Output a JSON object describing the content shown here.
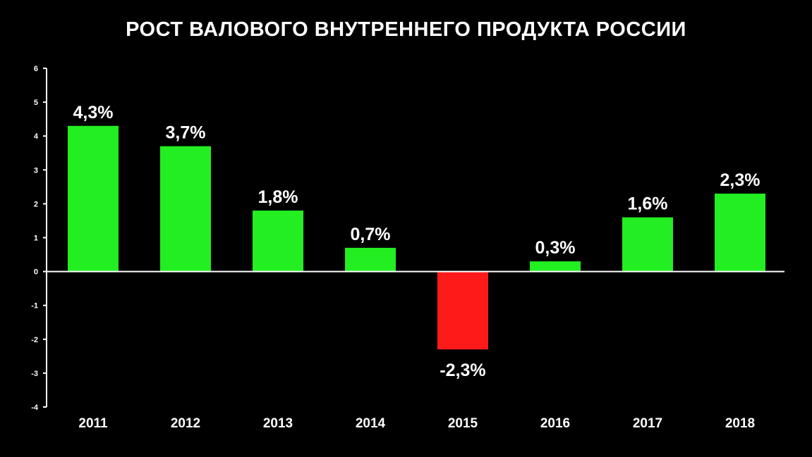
{
  "chart_data": {
    "type": "bar",
    "title": "РОСТ ВАЛОВОГО ВНУТРЕННЕГО ПРОДУКТА РОССИИ",
    "xlabel": "",
    "ylabel": "",
    "categories": [
      "2011",
      "2012",
      "2013",
      "2014",
      "2015",
      "2016",
      "2017",
      "2018"
    ],
    "values": [
      4.3,
      3.7,
      1.8,
      0.7,
      -2.3,
      0.3,
      1.6,
      2.3
    ],
    "data_labels": [
      "4,3%",
      "3,7%",
      "1,8%",
      "0,7%",
      "-2,3%",
      "0,3%",
      "1,6%",
      "2,3%"
    ],
    "ylim": [
      -4,
      6
    ],
    "yticks": [
      "-4",
      "-3",
      "-2",
      "-1",
      "0",
      "1",
      "2",
      "3",
      "4",
      "5",
      "6"
    ],
    "grid": false,
    "legend": "none",
    "colors": {
      "positive": "#22ee22",
      "negative": "#ff1a1a",
      "background": "#000000",
      "text": "#ffffff",
      "axis": "#ffffff"
    }
  }
}
